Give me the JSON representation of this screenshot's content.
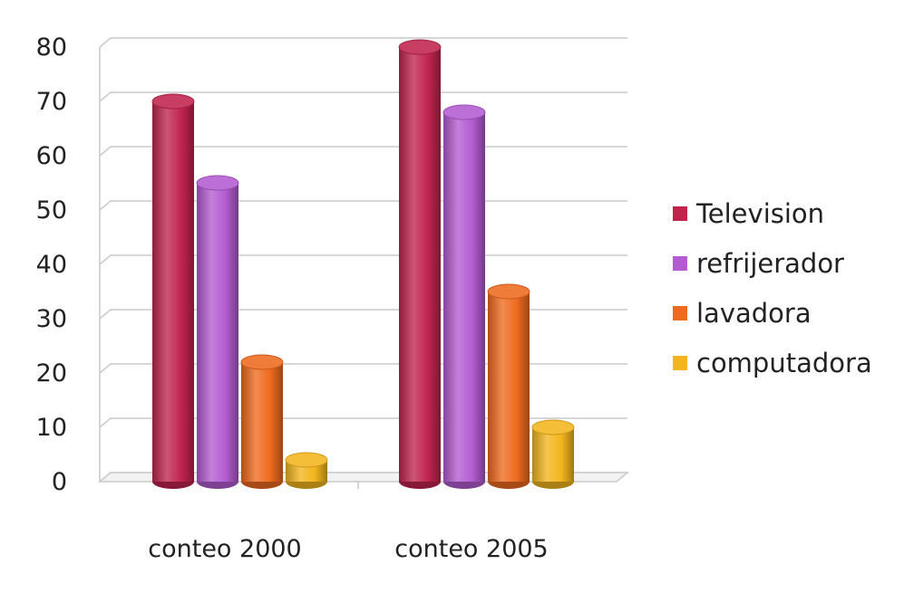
{
  "chart_data": {
    "type": "bar",
    "categories": [
      "conteo 2000",
      "conteo 2005"
    ],
    "series": [
      {
        "name": "Television",
        "values": [
          70,
          80
        ],
        "color": "#c0244e"
      },
      {
        "name": "refrijerador",
        "values": [
          55,
          68
        ],
        "color": "#b35bd0"
      },
      {
        "name": "lavadora",
        "values": [
          22,
          35
        ],
        "color": "#ee6a1e"
      },
      {
        "name": "computadora",
        "values": [
          4,
          10
        ],
        "color": "#f3b51d"
      }
    ],
    "yticks": [
      "0",
      "10",
      "20",
      "30",
      "40",
      "50",
      "60",
      "70",
      "80"
    ],
    "ylim": [
      0,
      80
    ],
    "grid": true,
    "legend_position": "right",
    "style": "3d-cylinder"
  }
}
